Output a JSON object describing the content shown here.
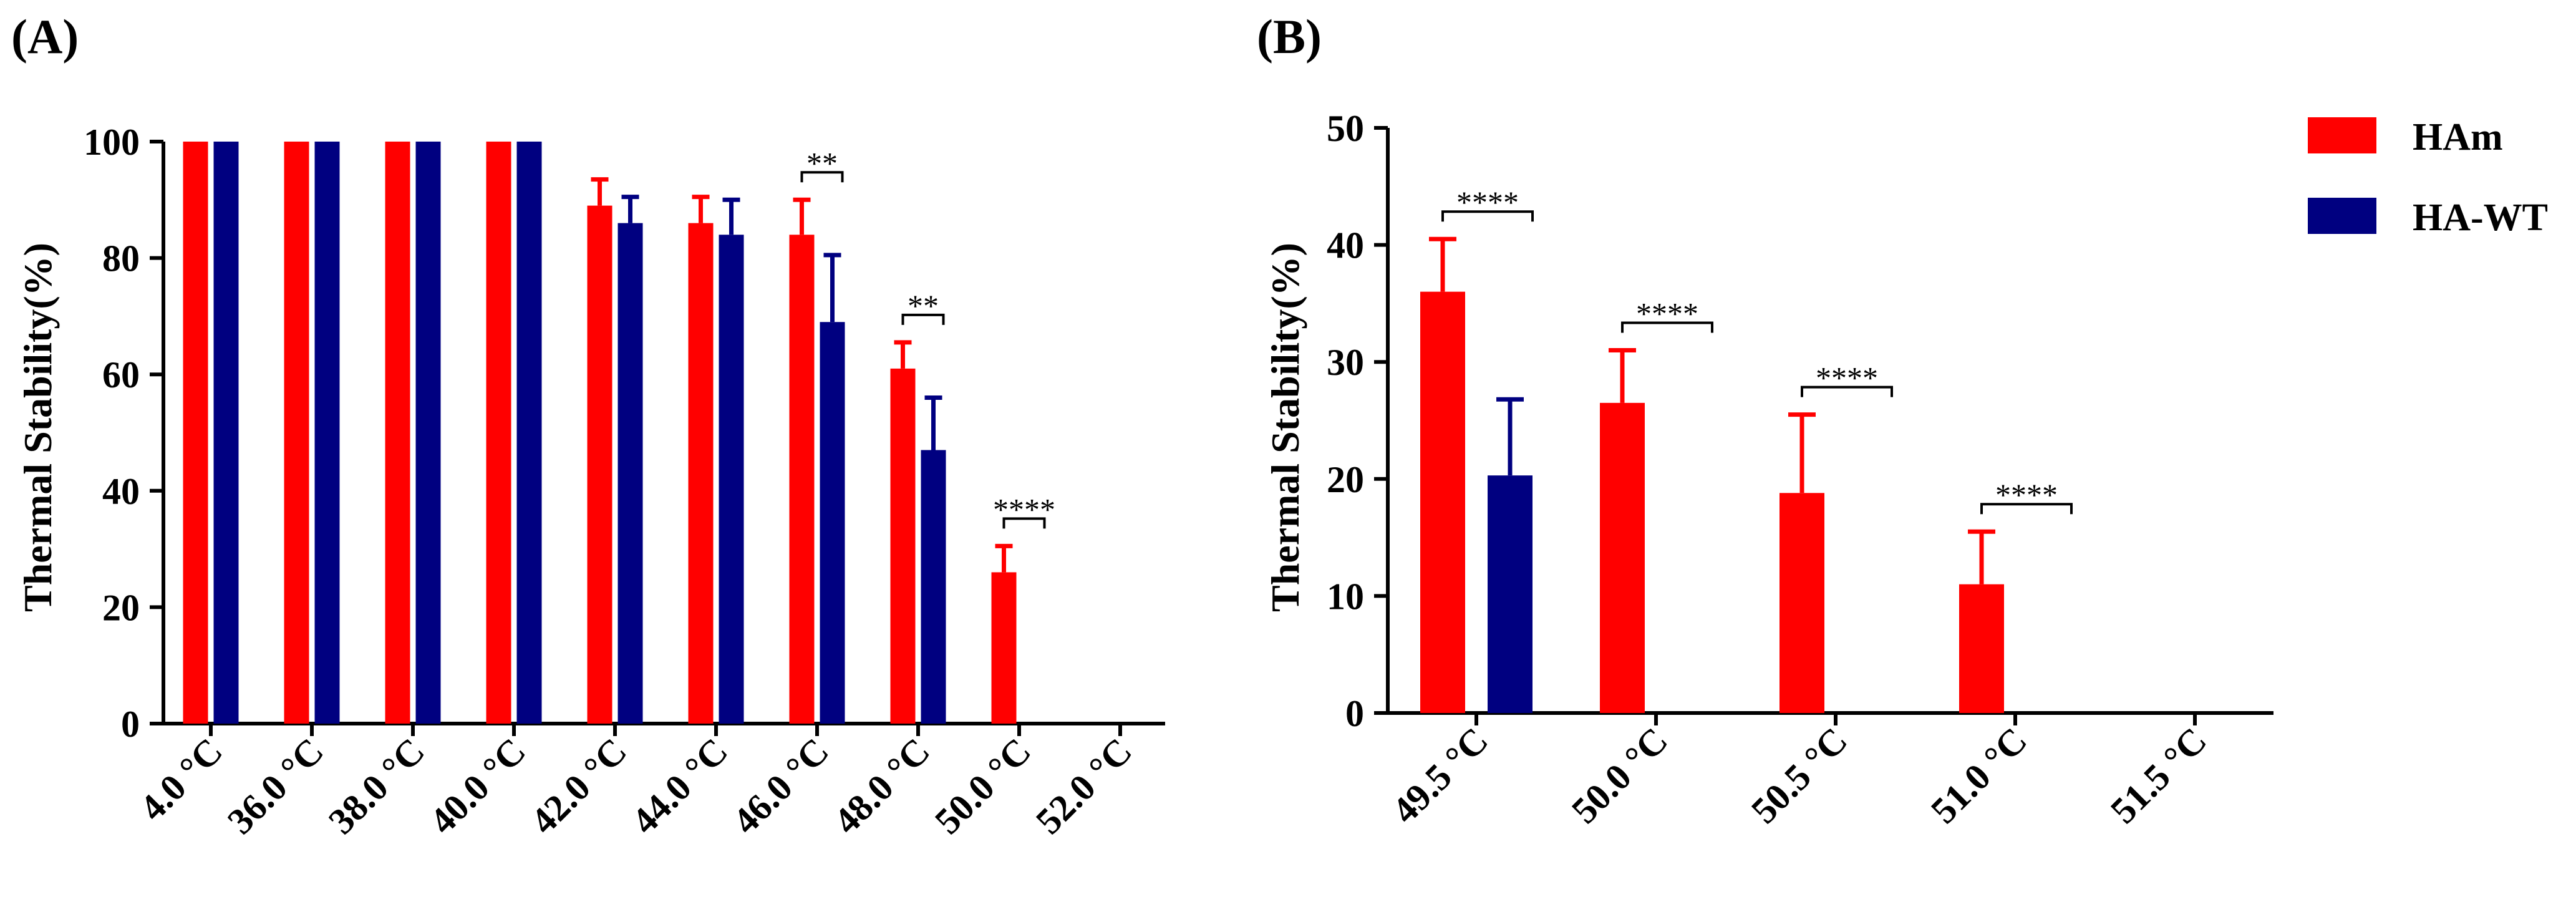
{
  "colors": {
    "HAm": "#ff0000",
    "HA-WT": "#000080",
    "axis": "#000000"
  },
  "legend": {
    "items": [
      {
        "key": "HAm",
        "label": "HAm"
      },
      {
        "key": "HA-WT",
        "label": "HA-WT"
      }
    ]
  },
  "chart_data": [
    {
      "panel": "(A)",
      "type": "bar",
      "ylabel": "Thermal Stability(%)",
      "xlabel": "",
      "ylim": [
        0,
        100
      ],
      "yticks": [
        0,
        20,
        40,
        60,
        80,
        100
      ],
      "categories": [
        "4.0 °C",
        "36.0 °C",
        "38.0 °C",
        "40.0 °C",
        "42.0 °C",
        "44.0 °C",
        "46.0 °C",
        "48.0 °C",
        "50.0 °C",
        "52.0 °C"
      ],
      "series": [
        {
          "name": "HAm",
          "values": [
            100,
            100,
            100,
            100,
            89,
            86,
            84,
            61,
            26,
            0
          ],
          "errors": [
            0,
            0,
            0,
            0,
            4.5,
            4.5,
            6,
            4.5,
            4.5,
            0
          ]
        },
        {
          "name": "HA-WT",
          "values": [
            100,
            100,
            100,
            100,
            86,
            84,
            69,
            47,
            0,
            0
          ],
          "errors": [
            0,
            0,
            0,
            0,
            4.5,
            6,
            11.5,
            9,
            0,
            0
          ]
        }
      ],
      "significance": [
        {
          "category": "46.0 °C",
          "label": "**"
        },
        {
          "category": "48.0 °C",
          "label": "**"
        },
        {
          "category": "50.0 °C",
          "label": "****"
        }
      ]
    },
    {
      "panel": "(B)",
      "type": "bar",
      "ylabel": "Thermal Stability(%)",
      "xlabel": "",
      "ylim": [
        0,
        50
      ],
      "yticks": [
        0,
        10,
        20,
        30,
        40,
        50
      ],
      "categories": [
        "49.5 °C",
        "50.0 °C",
        "50.5 °C",
        "51.0 °C",
        "51.5 °C"
      ],
      "series": [
        {
          "name": "HAm",
          "values": [
            36,
            26.5,
            18.8,
            11,
            0
          ],
          "errors": [
            4.5,
            4.5,
            6.7,
            4.5,
            0
          ]
        },
        {
          "name": "HA-WT",
          "values": [
            20.3,
            0,
            0,
            0,
            0
          ],
          "errors": [
            6.5,
            0,
            0,
            0,
            0
          ]
        }
      ],
      "significance": [
        {
          "category": "49.5 °C",
          "label": "****"
        },
        {
          "category": "50.0 °C",
          "label": "****"
        },
        {
          "category": "50.5 °C",
          "label": "****"
        },
        {
          "category": "51.0 °C",
          "label": "****"
        }
      ]
    }
  ]
}
